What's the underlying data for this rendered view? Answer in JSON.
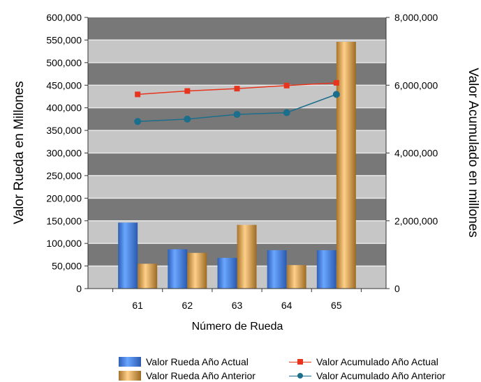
{
  "chart_data": {
    "type": "bar",
    "categories": [
      "61",
      "62",
      "63",
      "64",
      "65"
    ],
    "xlabel": "Número de Rueda",
    "ylabel": "Valor Rueda en Millones",
    "y2label": "Valor Acumulado en millones",
    "ylim": [
      0,
      600000
    ],
    "y2lim": [
      0,
      8000000
    ],
    "yticks": [
      "0",
      "50,000",
      "100,000",
      "150,000",
      "200,000",
      "250,000",
      "300,000",
      "350,000",
      "400,000",
      "450,000",
      "500,000",
      "550,000",
      "600,000"
    ],
    "y2ticks": [
      "0",
      "2,000,000",
      "4,000,000",
      "6,000,000",
      "8,000,000"
    ],
    "grid": true,
    "legend_position": "bottom",
    "series": [
      {
        "name": "Valor Rueda Año Actual",
        "kind": "bar",
        "axis": "left",
        "color": "#4a86e8",
        "values": [
          146000,
          87000,
          68000,
          85000,
          85000
        ]
      },
      {
        "name": "Valor Rueda Año Anterior",
        "kind": "bar",
        "axis": "left",
        "color": "#f0b860",
        "values": [
          55000,
          79000,
          141000,
          52000,
          546000
        ]
      },
      {
        "name": "Valor Acumulado Año Actual",
        "kind": "line",
        "axis": "right",
        "color": "#e8341c",
        "marker": "square",
        "values": [
          5730000,
          5830000,
          5900000,
          5990000,
          6070000
        ]
      },
      {
        "name": "Valor Acumulado Año Anterior",
        "kind": "line",
        "axis": "right",
        "color": "#1b6e8c",
        "marker": "circle",
        "values": [
          4930000,
          5000000,
          5140000,
          5190000,
          5730000
        ]
      }
    ]
  }
}
